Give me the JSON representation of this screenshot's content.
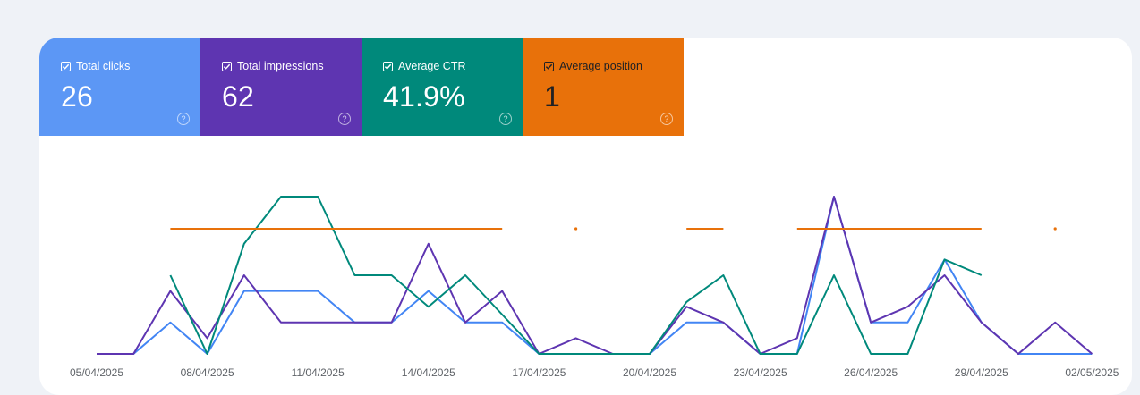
{
  "metrics": [
    {
      "label": "Total clicks",
      "value": "26",
      "color": "#5c97f5"
    },
    {
      "label": "Total impressions",
      "value": "62",
      "color": "#5e35b1"
    },
    {
      "label": "Average CTR",
      "value": "41.9%",
      "color": "#00897b"
    },
    {
      "label": "Average position",
      "value": "1",
      "color": "#e8710a"
    }
  ],
  "help_glyph": "?",
  "chart_data": {
    "type": "line",
    "x": [
      "05/04/2025",
      "06/04/2025",
      "07/04/2025",
      "08/04/2025",
      "09/04/2025",
      "10/04/2025",
      "11/04/2025",
      "12/04/2025",
      "13/04/2025",
      "14/04/2025",
      "15/04/2025",
      "16/04/2025",
      "17/04/2025",
      "18/04/2025",
      "19/04/2025",
      "20/04/2025",
      "21/04/2025",
      "22/04/2025",
      "23/04/2025",
      "24/04/2025",
      "25/04/2025",
      "26/04/2025",
      "27/04/2025",
      "28/04/2025",
      "29/04/2025",
      "30/04/2025",
      "01/05/2025",
      "02/05/2025"
    ],
    "xtick_labels": [
      "05/04/2025",
      "08/04/2025",
      "11/04/2025",
      "14/04/2025",
      "17/04/2025",
      "20/04/2025",
      "23/04/2025",
      "26/04/2025",
      "29/04/2025",
      "02/05/2025"
    ],
    "series": [
      {
        "name": "Total clicks",
        "color": "#4285f4",
        "values": [
          0,
          0,
          1,
          0,
          2,
          2,
          2,
          1,
          1,
          2,
          1,
          1,
          0,
          0,
          0,
          0,
          1,
          1,
          0,
          0,
          5,
          1,
          1,
          3,
          1,
          0,
          0,
          0
        ]
      },
      {
        "name": "Total impressions",
        "color": "#5e35b1",
        "values": [
          0,
          0,
          2,
          0.5,
          2.5,
          1,
          1,
          1,
          1,
          3.5,
          1,
          2,
          0,
          0.5,
          0,
          0,
          1.5,
          1,
          0,
          0.5,
          5,
          1,
          1.5,
          2.5,
          1,
          0,
          1,
          0
        ]
      },
      {
        "name": "Average CTR",
        "color": "#00897b",
        "values": [
          null,
          null,
          50,
          0,
          70,
          100,
          100,
          50,
          50,
          30,
          50,
          25,
          0,
          0,
          0,
          0,
          33,
          50,
          0,
          0,
          50,
          0,
          0,
          60,
          50,
          null,
          null,
          null
        ]
      },
      {
        "name": "Average position",
        "color": "#e8710a",
        "values": [
          null,
          null,
          1,
          1,
          1,
          1,
          1,
          1,
          1,
          1,
          1,
          1,
          null,
          1,
          null,
          null,
          1,
          1,
          null,
          1,
          1,
          1,
          1,
          1,
          1,
          null,
          1,
          null
        ]
      }
    ]
  }
}
